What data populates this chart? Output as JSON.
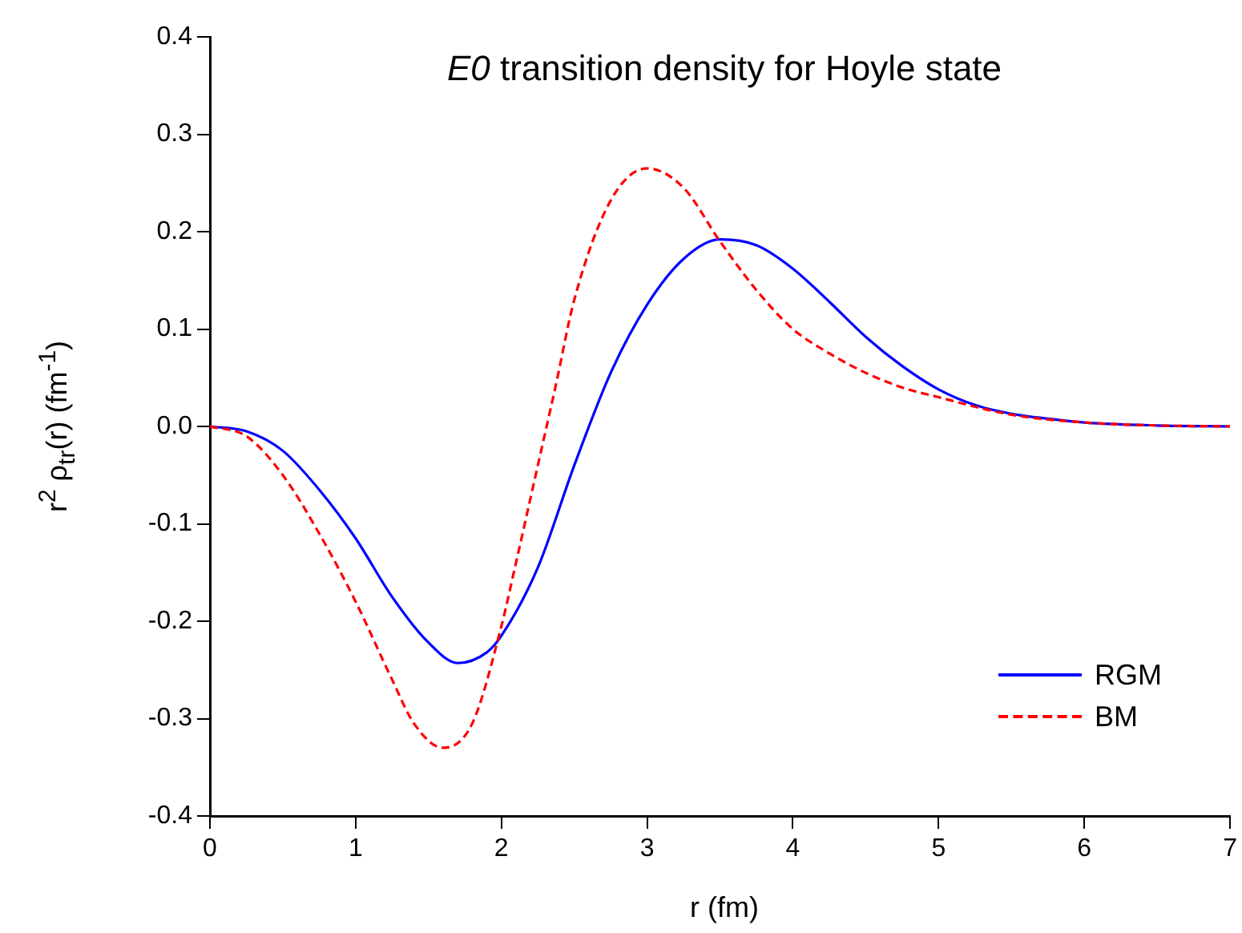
{
  "chart_data": {
    "type": "line",
    "title": "E0 transition density for Hoyle state",
    "xlabel": "r (fm)",
    "ylabel": "r$^{2}$ ρ$_{tr}$(r) (fm$^{-1}$)",
    "xlim": [
      0,
      7
    ],
    "xticks": [
      0,
      1,
      2,
      3,
      4,
      5,
      6,
      7
    ],
    "ylim": [
      -0.4,
      0.4
    ],
    "yticks": [
      {
        "value": -0.4,
        "label": "-0.4"
      },
      {
        "value": -0.3,
        "label": "-0.3"
      },
      {
        "value": -0.2,
        "label": "-0.2"
      },
      {
        "value": -0.1,
        "label": "-0.1"
      },
      {
        "value": 0,
        "label": "0.0"
      },
      {
        "value": 0.1,
        "label": "0.1"
      },
      {
        "value": 0.2,
        "label": "0.2"
      },
      {
        "value": 0.3,
        "label": "0.3"
      },
      {
        "value": 0.4,
        "label": "0.4"
      }
    ],
    "grid": false,
    "legend": "bottom right",
    "marker": "none",
    "series": [
      {
        "name": "RGM",
        "color": "#0000ff",
        "line_style": "solid",
        "x": [
          0,
          0.25,
          0.5,
          0.75,
          1.0,
          1.25,
          1.5,
          1.7,
          1.9,
          2.0,
          2.25,
          2.5,
          2.75,
          3.0,
          3.25,
          3.5,
          3.75,
          4.0,
          4.25,
          4.5,
          4.75,
          5.0,
          5.25,
          5.5,
          5.75,
          6.0,
          6.5,
          7.0
        ],
        "values": [
          0,
          -0.005,
          -0.025,
          -0.065,
          -0.115,
          -0.175,
          -0.222,
          -0.243,
          -0.232,
          -0.215,
          -0.145,
          -0.04,
          0.055,
          0.125,
          0.172,
          0.192,
          0.186,
          0.162,
          0.128,
          0.092,
          0.062,
          0.038,
          0.022,
          0.013,
          0.008,
          0.004,
          0.001,
          0
        ]
      },
      {
        "name": "BM",
        "color": "#ff0000",
        "line_style": "dashed",
        "x": [
          0,
          0.25,
          0.5,
          0.75,
          1.0,
          1.25,
          1.4,
          1.6,
          1.8,
          2.0,
          2.1,
          2.25,
          2.37,
          2.5,
          2.75,
          3.0,
          3.25,
          3.5,
          3.75,
          4.0,
          4.25,
          4.5,
          4.75,
          5.0,
          5.5,
          6.0,
          6.5,
          7.0
        ],
        "values": [
          0,
          -0.01,
          -0.05,
          -0.11,
          -0.18,
          -0.26,
          -0.305,
          -0.33,
          -0.305,
          -0.205,
          -0.14,
          -0.04,
          0.04,
          0.13,
          0.232,
          0.265,
          0.245,
          0.19,
          0.14,
          0.1,
          0.075,
          0.055,
          0.04,
          0.03,
          0.012,
          0.004,
          0.001,
          0
        ]
      }
    ]
  }
}
